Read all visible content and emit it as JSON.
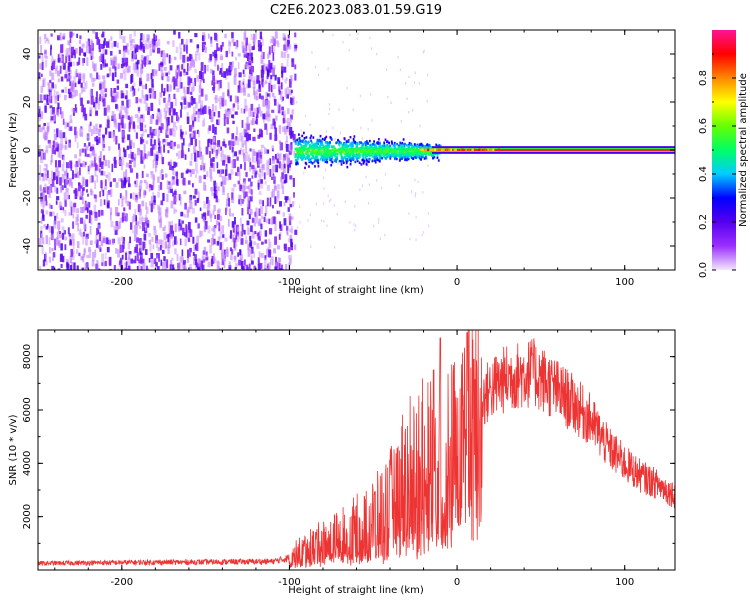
{
  "title": "C2E6.2023.083.01.59.G19",
  "chart_data": [
    {
      "type": "heatmap",
      "xlabel": "Height of straight line (km)",
      "ylabel": "Frequency (Hz)",
      "xlim": [
        -250,
        130
      ],
      "ylim": [
        -50,
        50
      ],
      "xticks": [
        -200,
        -100,
        0,
        100
      ],
      "yticks": [
        -40,
        -20,
        0,
        20,
        40
      ],
      "colorbar": {
        "label": "Normalized spectral amplitude",
        "range": [
          0,
          1
        ],
        "ticks": [
          0.0,
          0.2,
          0.4,
          0.6,
          0.8
        ],
        "colors": [
          "#f2e6ff",
          "#9b30ff",
          "#5500ee",
          "#0000ff",
          "#00ccff",
          "#00ff66",
          "#66ff00",
          "#ffff00",
          "#ff8800",
          "#ff0000",
          "#ff1493"
        ]
      },
      "regions": [
        {
          "x": [
            -250,
            -97
          ],
          "freq": [
            -50,
            50
          ],
          "desc_level": [
            0.05,
            0.25
          ]
        },
        {
          "x": [
            -97,
            -10
          ],
          "freq": [
            -8,
            8
          ],
          "desc_level": [
            0.2,
            0.55
          ]
        },
        {
          "x": [
            -10,
            130
          ],
          "freq": [
            -2,
            2
          ],
          "desc_level": [
            0.5,
            0.95
          ]
        }
      ]
    },
    {
      "type": "line",
      "xlabel": "Height of straight line (km)",
      "ylabel": "SNR (10 * v/v)",
      "xlim": [
        -250,
        130
      ],
      "ylim": [
        0,
        9000
      ],
      "xticks": [
        -200,
        -100,
        0,
        100
      ],
      "yticks": [
        2000,
        4000,
        6000,
        8000
      ],
      "color": "#ee3333",
      "envelope": {
        "x": [
          -250,
          -200,
          -150,
          -110,
          -100,
          -90,
          -70,
          -50,
          -40,
          -30,
          -20,
          -10,
          0,
          10,
          20,
          30,
          45,
          50,
          60,
          70,
          80,
          90,
          100,
          110,
          120,
          130
        ],
        "y": [
          250,
          280,
          300,
          320,
          450,
          800,
          1200,
          1800,
          2400,
          3500,
          3800,
          4200,
          4800,
          6000,
          6800,
          7200,
          7400,
          7200,
          6700,
          6200,
          5600,
          4600,
          4000,
          3500,
          3200,
          2800
        ]
      },
      "spikes": [
        {
          "x": -14,
          "y": 7500
        },
        {
          "x": -10,
          "y": 8700
        },
        {
          "x": 6,
          "y": 8900
        },
        {
          "x": 10,
          "y": 7900
        },
        {
          "x": 45,
          "y": 8100
        }
      ]
    }
  ]
}
